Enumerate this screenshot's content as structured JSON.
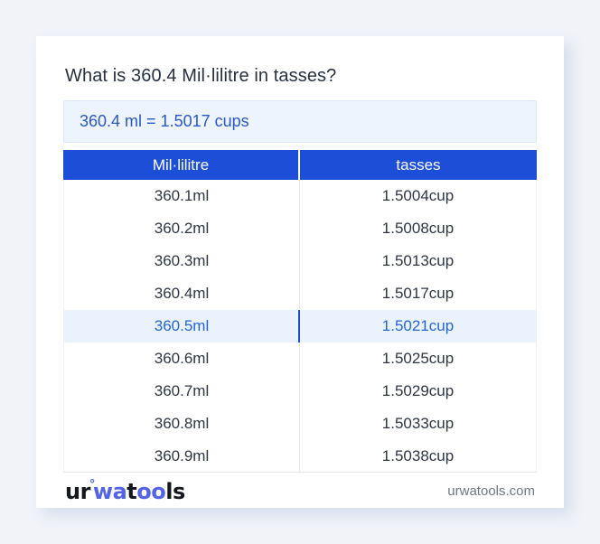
{
  "title": "What is 360.4 Mil·lilitre in tasses?",
  "result": {
    "text": "360.4 ml = 1.5017 cups"
  },
  "table": {
    "headers": [
      "Mil·lilitre",
      "tasses"
    ],
    "rows": [
      {
        "ml": "360.1ml",
        "cup": "1.5004cup",
        "highlighted": false
      },
      {
        "ml": "360.2ml",
        "cup": "1.5008cup",
        "highlighted": false
      },
      {
        "ml": "360.3ml",
        "cup": "1.5013cup",
        "highlighted": false
      },
      {
        "ml": "360.4ml",
        "cup": "1.5017cup",
        "highlighted": false
      },
      {
        "ml": "360.5ml",
        "cup": "1.5021cup",
        "highlighted": true
      },
      {
        "ml": "360.6ml",
        "cup": "1.5025cup",
        "highlighted": false
      },
      {
        "ml": "360.7ml",
        "cup": "1.5029cup",
        "highlighted": false
      },
      {
        "ml": "360.8ml",
        "cup": "1.5033cup",
        "highlighted": false
      },
      {
        "ml": "360.9ml",
        "cup": "1.5038cup",
        "highlighted": false
      }
    ]
  },
  "footer": {
    "logo": {
      "segments": [
        {
          "text": "ur",
          "style": "dark"
        },
        {
          "text": "°",
          "style": "ring"
        },
        {
          "text": "wa",
          "style": "blue"
        },
        {
          "text": "t",
          "style": "dark"
        },
        {
          "text": "oo",
          "style": "blue"
        },
        {
          "text": "ls",
          "style": "dark"
        }
      ]
    },
    "site": "urwatools.com"
  },
  "colors": {
    "page_background": "#f1f3f9",
    "card_background": "#ffffff",
    "header_blue": "#1d4ed8",
    "result_background": "#edf4fd",
    "result_text": "#2a58c6",
    "row_text": "#2e3644",
    "highlight_background": "#e9f2fd",
    "highlight_text": "#2565d8",
    "logo_blue": "#5263e8",
    "footer_text": "#6f7885"
  }
}
